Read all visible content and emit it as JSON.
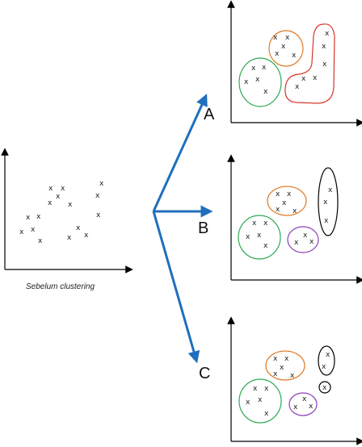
{
  "caption": "Sebelum clustering",
  "options": [
    {
      "key": "A",
      "label": "A"
    },
    {
      "key": "B",
      "label": "B"
    },
    {
      "key": "C",
      "label": "C"
    }
  ],
  "point_marker": "x",
  "colors": {
    "arrow": "#1f6fbd",
    "axis": "#000000",
    "green": "#2eaa52",
    "orange": "#e07b28",
    "red": "#d9342b",
    "purple": "#8a3fb5",
    "black": "#000000"
  },
  "clusters": {
    "A": [
      "green",
      "orange",
      "red"
    ],
    "B": [
      "green",
      "orange",
      "purple",
      "black"
    ],
    "C": [
      "green",
      "orange",
      "purple",
      "black",
      "black"
    ]
  }
}
